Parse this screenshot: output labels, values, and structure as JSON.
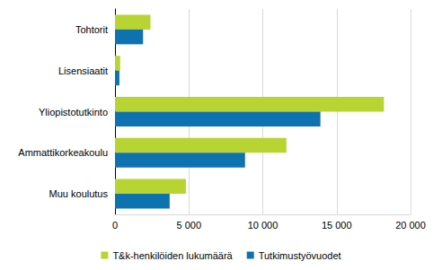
{
  "chart_data": {
    "type": "bar",
    "orientation": "horizontal",
    "categories": [
      "Tohtorit",
      "Lisensiaatit",
      "Yliopistotutkinto",
      "Ammattikorkeakoulu",
      "Muu koulutus"
    ],
    "series": [
      {
        "name": "T&k-henkilöiden lukumäärä",
        "color": "#b8d433",
        "values": [
          2400,
          350,
          18200,
          11600,
          4800
        ]
      },
      {
        "name": "Tutkimustyövuodet",
        "color": "#0f72b0",
        "values": [
          1900,
          300,
          13900,
          8800,
          3700
        ]
      }
    ],
    "xlim": [
      0,
      20000
    ],
    "xticks": [
      0,
      {
        "value": 5000,
        "label": "5 000"
      },
      {
        "value": 10000,
        "label": "10 000"
      },
      {
        "value": 15000,
        "label": "15 000"
      },
      {
        "value": 20000,
        "label": "20 000"
      }
    ],
    "grid": true,
    "legend": "bottom"
  }
}
